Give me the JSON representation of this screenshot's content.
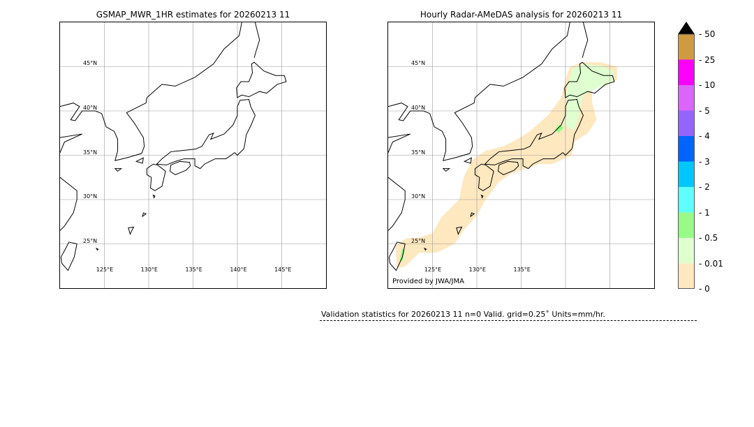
{
  "left_panel": {
    "title": "GSMAP_MWR_1HR estimates for 20260213 11",
    "lon_labels": [
      "125°E",
      "130°E",
      "135°E",
      "140°E",
      "145°E"
    ],
    "lat_labels": [
      "45°N",
      "40°N",
      "35°N",
      "30°N",
      "25°N"
    ]
  },
  "right_panel": {
    "title": "Hourly Radar-AMeDAS analysis for 20260213 11",
    "lon_labels": [
      "125°E",
      "130°E",
      "135°E"
    ],
    "lat_labels": [
      "45°N",
      "40°N",
      "35°N",
      "30°N",
      "25°N"
    ],
    "credit": "Provided by JWA/JMA"
  },
  "colorbar": {
    "labels": [
      "0",
      "0.01",
      "0.5",
      "1",
      "2",
      "3",
      "4",
      "5",
      "10",
      "25",
      "50"
    ],
    "colors": [
      "#fee8c0",
      "#e0ffd0",
      "#98fb88",
      "#60ffff",
      "#00c8ff",
      "#0064ff",
      "#9664ff",
      "#dc64ff",
      "#ff00ff",
      "#d09a40"
    ],
    "extend_color": "#000000"
  },
  "validation": "Validation statistics for 20260213 11  n=0 Valid. grid=0.25˚ Units=mm/hr."
}
